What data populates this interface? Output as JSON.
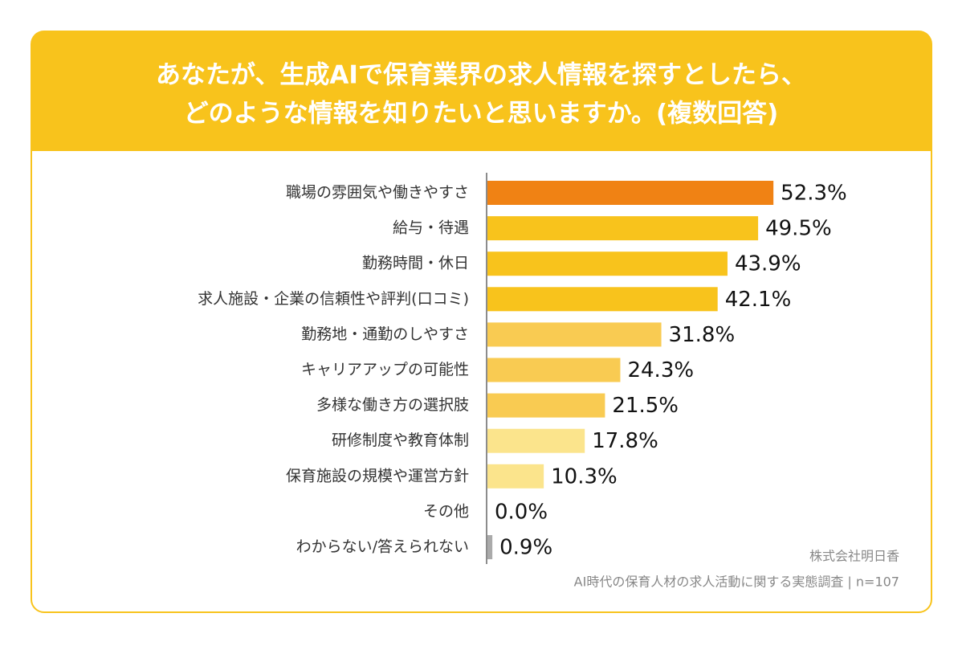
{
  "chart_data": {
    "type": "bar",
    "orientation": "horizontal",
    "title": [
      "あなたが、生成AIで保育業界の求人情報を探すとしたら、",
      "どのような情報を知りたいと思いますか。(複数回答)"
    ],
    "categories": [
      "職場の雰囲気や働きやすさ",
      "給与・待遇",
      "勤務時間・休日",
      "求人施設・企業の信頼性や評判(口コミ)",
      "勤務地・通勤のしやすさ",
      "キャリアアップの可能性",
      "多様な働き方の選択肢",
      "研修制度や教育体制",
      "保育施設の規模や運営方針",
      "その他",
      "わからない/答えられない"
    ],
    "values": [
      52.3,
      49.5,
      43.9,
      42.1,
      31.8,
      24.3,
      21.5,
      17.8,
      10.3,
      0.0,
      0.9
    ],
    "value_labels": [
      "52.3%",
      "49.5%",
      "43.9%",
      "42.1%",
      "31.8%",
      "24.3%",
      "21.5%",
      "17.8%",
      "10.3%",
      "0.0%",
      "0.9%"
    ],
    "colors": [
      "#f08214",
      "#f8c31c",
      "#f8c31c",
      "#f8c31c",
      "#f9cb52",
      "#f9cb52",
      "#f9cb52",
      "#fbe48c",
      "#fbe48c",
      "#fbe48c",
      "#aaaaaa"
    ],
    "source": [
      "株式会社明日香",
      "AI時代の保育人材の求人活動に関する実態調査 | n=107"
    ]
  }
}
